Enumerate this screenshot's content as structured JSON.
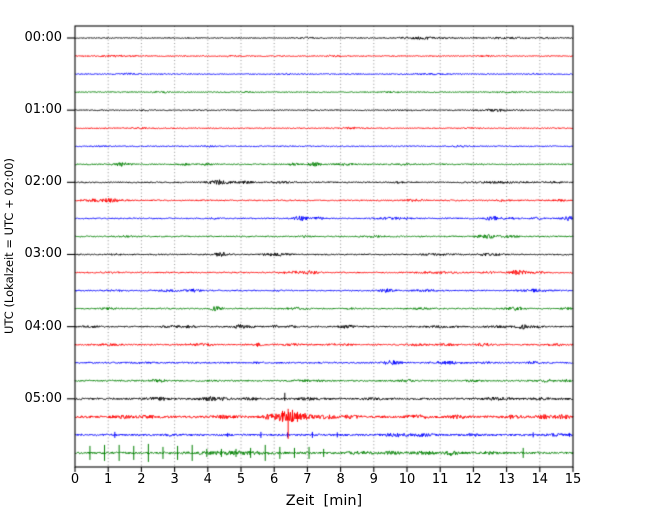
{
  "chart_data": {
    "type": "line",
    "subtype": "seismogram-helicorder-dayplot",
    "title": "",
    "xlabel": "Zeit  [min]",
    "ylabel": "UTC (Lokalzeit = UTC + 02:00)",
    "xlim": [
      0,
      15
    ],
    "x_tick_labels": [
      "0",
      "1",
      "2",
      "3",
      "4",
      "5",
      "6",
      "7",
      "8",
      "9",
      "10",
      "11",
      "12",
      "13",
      "14",
      "15"
    ],
    "y_tick_labels": [
      "00:00",
      "01:00",
      "02:00",
      "03:00",
      "04:00",
      "05:00"
    ],
    "traces_per_hour": 4,
    "minutes_per_trace": 15,
    "grid": "vertical dotted line at every minute",
    "legend": "none",
    "color_cycle": [
      "#000000",
      "#ff0000",
      "#0000ff",
      "#008000"
    ],
    "grid_color": "#8a8a8a",
    "traces": [
      {
        "start": "00:00",
        "color": "#000000",
        "base": 0.5,
        "events": [
          [
            10.5,
            0.9,
            1.0
          ],
          [
            12.9,
            1.0,
            0.6
          ],
          [
            7.0,
            0.4,
            0.4
          ],
          [
            14.3,
            0.4,
            0.4
          ]
        ],
        "spikes": []
      },
      {
        "start": "00:15",
        "color": "#ff0000",
        "base": 0.5,
        "events": [
          [
            1.2,
            0.8,
            0.5
          ],
          [
            4.7,
            0.3,
            0.4
          ],
          [
            7.8,
            0.3,
            0.5
          ],
          [
            12.4,
            0.3,
            0.4
          ]
        ],
        "spikes": []
      },
      {
        "start": "00:30",
        "color": "#0000ff",
        "base": 0.5,
        "events": [
          [
            1.6,
            0.4,
            0.6
          ],
          [
            10.8,
            0.7,
            0.6
          ],
          [
            13.8,
            0.3,
            0.4
          ],
          [
            6.4,
            0.3,
            0.4
          ]
        ],
        "spikes": []
      },
      {
        "start": "00:45",
        "color": "#008000",
        "base": 0.5,
        "events": [
          [
            2.6,
            0.3,
            0.6
          ],
          [
            5.2,
            0.3,
            0.5
          ],
          [
            9.5,
            0.4,
            0.4
          ],
          [
            13.0,
            0.5,
            0.5
          ]
        ],
        "spikes": []
      },
      {
        "start": "01:00",
        "color": "#000000",
        "base": 0.5,
        "events": [
          [
            12.7,
            0.9,
            1.0
          ],
          [
            9.8,
            0.4,
            0.4
          ],
          [
            2.1,
            0.3,
            0.4
          ]
        ],
        "spikes": []
      },
      {
        "start": "01:15",
        "color": "#ff0000",
        "base": 0.5,
        "events": [
          [
            8.3,
            0.4,
            0.6
          ],
          [
            2.0,
            0.5,
            0.4
          ],
          [
            11.9,
            0.3,
            0.4
          ]
        ],
        "spikes": []
      },
      {
        "start": "01:30",
        "color": "#0000ff",
        "base": 0.5,
        "events": [
          [
            4.0,
            0.3,
            0.5
          ],
          [
            11.5,
            0.4,
            0.5
          ],
          [
            0.8,
            0.3,
            0.4
          ]
        ],
        "spikes": []
      },
      {
        "start": "01:45",
        "color": "#008000",
        "base": 0.6,
        "events": [
          [
            1.4,
            0.35,
            1.6
          ],
          [
            3.3,
            0.2,
            1.1
          ],
          [
            4.0,
            0.3,
            0.8
          ],
          [
            6.6,
            0.2,
            0.9
          ],
          [
            7.2,
            0.3,
            1.5
          ],
          [
            8.1,
            0.4,
            0.7
          ],
          [
            9.9,
            0.3,
            0.5
          ]
        ],
        "spikes": []
      },
      {
        "start": "02:00",
        "color": "#000000",
        "base": 0.6,
        "events": [
          [
            4.35,
            0.45,
            2.2
          ],
          [
            5.1,
            0.35,
            1.0
          ],
          [
            6.2,
            0.6,
            0.8
          ],
          [
            9.7,
            0.3,
            0.6
          ],
          [
            12.9,
            1.1,
            0.7
          ],
          [
            14.5,
            0.4,
            0.6
          ]
        ],
        "spikes": []
      },
      {
        "start": "02:15",
        "color": "#ff0000",
        "base": 0.6,
        "events": [
          [
            1.0,
            0.55,
            1.6
          ],
          [
            0.4,
            0.3,
            0.9
          ],
          [
            10.2,
            0.5,
            0.6
          ],
          [
            12.9,
            0.4,
            0.7
          ],
          [
            14.6,
            0.3,
            0.7
          ]
        ],
        "spikes": []
      },
      {
        "start": "02:30",
        "color": "#0000ff",
        "base": 0.6,
        "events": [
          [
            6.8,
            0.3,
            2.2
          ],
          [
            7.35,
            0.2,
            1.1
          ],
          [
            4.2,
            0.2,
            0.7
          ],
          [
            9.35,
            0.45,
            1.1
          ],
          [
            9.9,
            0.3,
            0.8
          ],
          [
            12.6,
            0.35,
            1.8
          ],
          [
            13.15,
            0.3,
            0.9
          ],
          [
            13.9,
            0.3,
            0.7
          ],
          [
            14.85,
            0.25,
            1.9
          ]
        ],
        "spikes": []
      },
      {
        "start": "02:45",
        "color": "#008000",
        "base": 0.6,
        "events": [
          [
            12.4,
            0.45,
            1.6
          ],
          [
            13.1,
            0.4,
            0.9
          ],
          [
            9.0,
            0.5,
            0.5
          ],
          [
            1.5,
            0.4,
            0.5
          ],
          [
            6.9,
            0.3,
            0.5
          ]
        ],
        "spikes": []
      },
      {
        "start": "03:00",
        "color": "#000000",
        "base": 0.6,
        "events": [
          [
            4.4,
            0.3,
            2.0
          ],
          [
            5.95,
            0.4,
            1.1
          ],
          [
            6.35,
            0.3,
            0.9
          ],
          [
            10.9,
            0.8,
            0.6
          ],
          [
            12.35,
            0.3,
            1.1
          ],
          [
            12.75,
            0.2,
            0.8
          ],
          [
            1.2,
            0.3,
            0.4
          ]
        ],
        "spikes": []
      },
      {
        "start": "03:15",
        "color": "#ff0000",
        "base": 0.6,
        "events": [
          [
            6.6,
            0.5,
            1.2
          ],
          [
            7.1,
            0.35,
            1.3
          ],
          [
            10.9,
            0.8,
            0.7
          ],
          [
            13.35,
            0.3,
            2.6
          ],
          [
            13.95,
            0.3,
            0.8
          ],
          [
            12.5,
            0.3,
            0.6
          ],
          [
            1.1,
            0.4,
            0.5
          ]
        ],
        "spikes": []
      },
      {
        "start": "03:30",
        "color": "#0000ff",
        "base": 0.6,
        "events": [
          [
            2.7,
            0.5,
            0.9
          ],
          [
            3.55,
            0.3,
            1.4
          ],
          [
            6.05,
            0.2,
            0.7
          ],
          [
            9.4,
            0.3,
            1.6
          ],
          [
            10.5,
            0.5,
            0.7
          ],
          [
            13.75,
            0.45,
            1.3
          ],
          [
            14.25,
            0.3,
            0.9
          ],
          [
            1.3,
            0.4,
            0.5
          ]
        ],
        "spikes": []
      },
      {
        "start": "03:45",
        "color": "#008000",
        "base": 0.6,
        "events": [
          [
            1.0,
            0.4,
            0.6
          ],
          [
            4.25,
            0.25,
            2.0
          ],
          [
            6.7,
            0.5,
            0.8
          ],
          [
            10.4,
            0.5,
            0.6
          ],
          [
            13.25,
            0.35,
            1.5
          ],
          [
            14.8,
            0.2,
            0.9
          ],
          [
            8.3,
            0.3,
            0.5
          ]
        ],
        "spikes": []
      },
      {
        "start": "04:00",
        "color": "#000000",
        "base": 0.7,
        "events": [
          [
            0.5,
            0.3,
            0.7
          ],
          [
            2.9,
            0.3,
            1.2
          ],
          [
            3.4,
            0.3,
            1.0
          ],
          [
            4.95,
            0.3,
            1.8
          ],
          [
            5.3,
            0.2,
            1.1
          ],
          [
            6.0,
            0.15,
            1.4
          ],
          [
            6.5,
            0.2,
            0.8
          ],
          [
            8.2,
            0.3,
            1.3
          ],
          [
            11.0,
            0.6,
            0.6
          ],
          [
            12.8,
            0.6,
            0.7
          ],
          [
            13.5,
            0.25,
            1.9
          ],
          [
            13.95,
            0.2,
            0.9
          ]
        ],
        "spikes": []
      },
      {
        "start": "04:15",
        "color": "#ff0000",
        "base": 0.7,
        "events": [
          [
            1.0,
            0.5,
            0.6
          ],
          [
            3.7,
            0.5,
            1.0
          ],
          [
            5.5,
            0.12,
            2.0
          ],
          [
            8.0,
            0.5,
            0.6
          ],
          [
            10.3,
            0.4,
            0.7
          ],
          [
            11.2,
            0.4,
            0.7
          ],
          [
            12.3,
            0.3,
            1.4
          ],
          [
            14.5,
            0.3,
            0.8
          ],
          [
            6.6,
            0.4,
            0.6
          ]
        ],
        "spikes": []
      },
      {
        "start": "04:30",
        "color": "#0000ff",
        "base": 0.7,
        "events": [
          [
            5.5,
            0.2,
            0.7
          ],
          [
            9.55,
            0.4,
            1.7
          ],
          [
            11.2,
            0.5,
            1.1
          ],
          [
            13.8,
            0.3,
            0.8
          ],
          [
            2.0,
            0.4,
            0.5
          ],
          [
            12.4,
            0.3,
            0.6
          ]
        ],
        "spikes": []
      },
      {
        "start": "04:45",
        "color": "#008000",
        "base": 0.7,
        "events": [
          [
            2.5,
            0.3,
            1.2
          ],
          [
            7.0,
            0.6,
            0.7
          ],
          [
            10.0,
            0.3,
            0.8
          ],
          [
            12.0,
            0.3,
            0.7
          ],
          [
            14.2,
            0.3,
            1.1
          ],
          [
            14.8,
            0.2,
            0.9
          ],
          [
            4.1,
            0.3,
            0.5
          ]
        ],
        "spikes": []
      },
      {
        "start": "05:00",
        "color": "#000000",
        "base": 0.9,
        "events": [
          [
            2.5,
            0.4,
            1.4
          ],
          [
            4.05,
            0.4,
            1.5
          ],
          [
            4.45,
            0.2,
            1.0
          ],
          [
            7.0,
            0.3,
            0.8
          ],
          [
            9.0,
            0.5,
            0.7
          ],
          [
            12.7,
            0.6,
            1.0
          ],
          [
            14.0,
            0.3,
            0.8
          ],
          [
            5.3,
            0.3,
            0.8
          ]
        ],
        "spikes": [
          [
            6.32,
            6,
            2
          ]
        ]
      },
      {
        "start": "05:15",
        "color": "#ff0000",
        "base": 1.1,
        "events": [
          [
            1.5,
            0.4,
            1.1
          ],
          [
            2.2,
            0.3,
            0.9
          ],
          [
            4.5,
            0.4,
            1.0
          ],
          [
            5.9,
            0.3,
            2.2
          ],
          [
            6.4,
            0.45,
            4.5
          ],
          [
            6.95,
            0.3,
            2.2
          ],
          [
            7.6,
            0.4,
            1.4
          ],
          [
            8.3,
            0.4,
            1.1
          ],
          [
            10.3,
            0.4,
            1.7
          ],
          [
            11.5,
            0.4,
            0.9
          ],
          [
            13.2,
            0.3,
            1.5
          ],
          [
            14.15,
            0.35,
            1.5
          ],
          [
            14.7,
            0.3,
            1.3
          ]
        ],
        "spikes": [
          [
            6.42,
            8,
            22
          ],
          [
            6.25,
            6,
            4
          ],
          [
            6.55,
            7,
            5
          ],
          [
            6.7,
            5,
            5
          ]
        ]
      },
      {
        "start": "05:30",
        "color": "#0000ff",
        "base": 0.9,
        "events": [
          [
            9.7,
            0.5,
            1.3
          ],
          [
            10.5,
            0.4,
            1.0
          ],
          [
            12.0,
            0.3,
            0.7
          ],
          [
            14.5,
            0.4,
            1.0
          ],
          [
            2.9,
            0.3,
            0.7
          ]
        ],
        "spikes": [
          [
            1.2,
            3,
            3
          ],
          [
            4.6,
            2,
            2
          ],
          [
            5.6,
            3,
            3
          ],
          [
            6.4,
            2.5,
            2.5
          ],
          [
            7.15,
            3,
            3
          ],
          [
            7.9,
            2.5,
            2.5
          ],
          [
            13.8,
            2.5,
            2.5
          ],
          [
            14.9,
            2,
            2
          ]
        ]
      },
      {
        "start": "05:45",
        "color": "#008000",
        "base": 1.0,
        "events": [
          [
            8.6,
            0.5,
            1.1
          ],
          [
            9.5,
            0.4,
            1.1
          ],
          [
            10.5,
            0.4,
            1.2
          ],
          [
            11.35,
            0.3,
            1.8
          ],
          [
            12.5,
            0.3,
            0.9
          ],
          [
            4.7,
            1.5,
            1.3
          ]
        ],
        "spikes": [
          [
            0.45,
            7,
            7
          ],
          [
            0.89,
            8,
            8
          ],
          [
            1.33,
            8,
            8
          ],
          [
            1.77,
            7,
            7
          ],
          [
            2.21,
            9,
            9
          ],
          [
            2.65,
            6,
            6
          ],
          [
            3.09,
            7,
            7
          ],
          [
            3.53,
            8,
            8
          ],
          [
            3.97,
            4,
            4
          ],
          [
            4.41,
            4,
            4
          ],
          [
            4.85,
            4,
            4
          ],
          [
            5.29,
            5,
            5
          ],
          [
            5.73,
            8,
            8
          ],
          [
            6.17,
            6,
            6
          ],
          [
            6.61,
            5,
            5
          ],
          [
            7.05,
            6,
            6
          ],
          [
            7.49,
            4,
            4
          ],
          [
            13.5,
            5,
            5
          ]
        ]
      }
    ]
  }
}
